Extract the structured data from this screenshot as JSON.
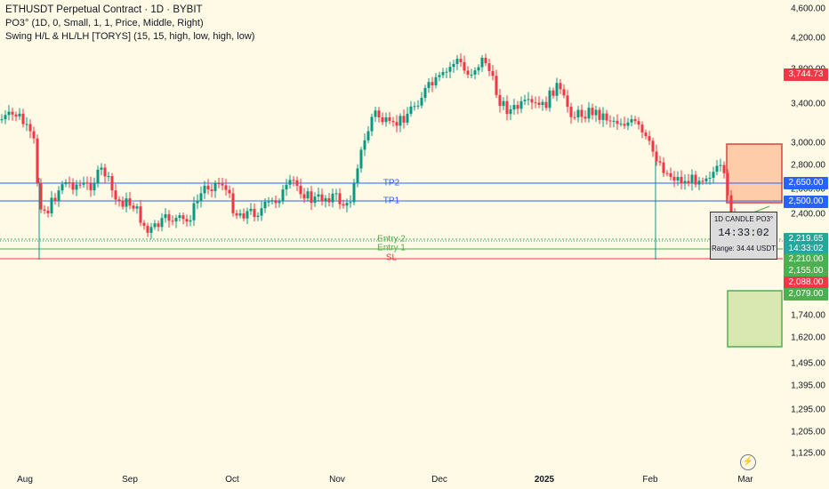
{
  "legend": {
    "title": "ETHUSDT Perpetual Contract · 1D · BYBIT",
    "po3": "PO3° (1D, 0, Small, 1, 1, Price, Middle, Right)",
    "swing": "Swing H/L & HL/LH [TORYS] (15, 15, high, low, high, low)"
  },
  "price_axis": {
    "ticks": [
      "4,600.00",
      "4,200.00",
      "3,800.00",
      "3,400.00",
      "3,000.00",
      "2,800.00",
      "2,600.00",
      "2,400.00",
      "1,740.00",
      "1,620.00",
      "1,495.00",
      "1,395.00",
      "1,295.00",
      "1,205.00",
      "1,125.00"
    ],
    "tags": [
      {
        "text": "3,744.73",
        "color": "#f23645"
      },
      {
        "text": "2,650.00",
        "color": "#2962ff"
      },
      {
        "text": "2,500.00",
        "color": "#2962ff"
      },
      {
        "text": "2,219.65",
        "color": "#26a69a"
      },
      {
        "text": "14:33:02",
        "color": "#26a69a"
      },
      {
        "text": "2,210.00",
        "color": "#4caf50"
      },
      {
        "text": "2,155.00",
        "color": "#4caf50"
      },
      {
        "text": "2,088.00",
        "color": "#f23645"
      },
      {
        "text": "2,079.00",
        "color": "#4caf50"
      }
    ]
  },
  "time_axis": [
    "Aug",
    "Sep",
    "Oct",
    "Nov",
    "Dec",
    "2025",
    "Feb",
    "Mar"
  ],
  "levels": {
    "tp2": "TP2",
    "tp1": "TP1",
    "entry2": "Entry 2",
    "entry1": "Entry 1",
    "sl": "SL"
  },
  "candle_box": {
    "title": "1D CANDLE PO3°",
    "timer": "14:33:02",
    "range": "Range: 34.44 USDT"
  },
  "colors": {
    "up": "#089981",
    "down": "#f23645",
    "tp": "#2962ff",
    "entry": "#4caf50",
    "sl": "#f23645"
  }
}
